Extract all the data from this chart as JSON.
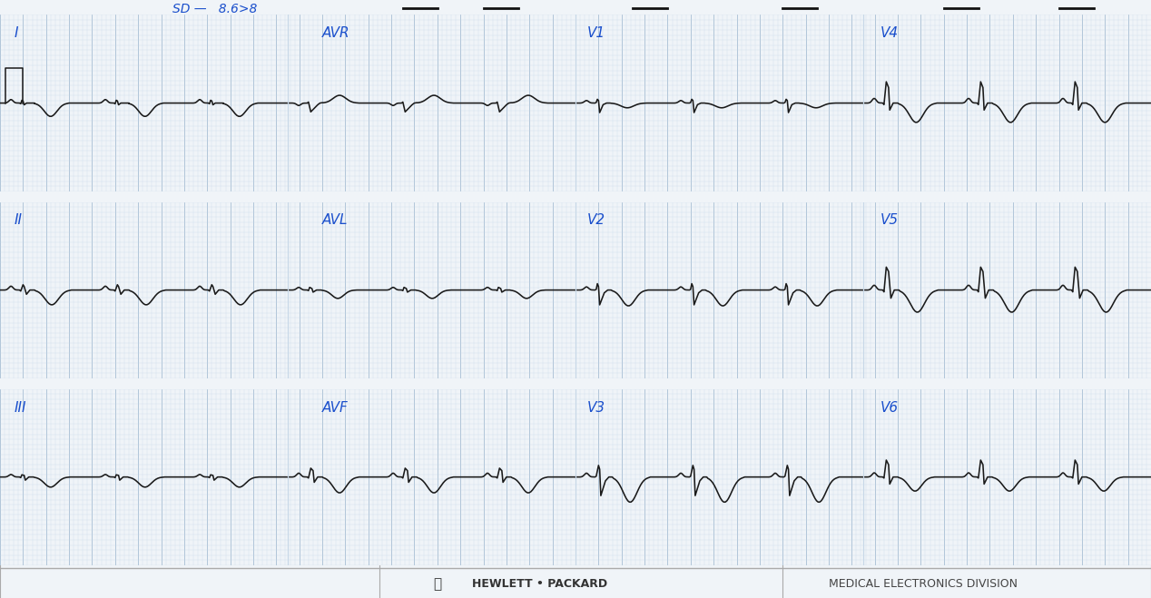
{
  "bg_color": "#f0f4f8",
  "grid_minor_color": "#c5d5e8",
  "grid_major_color": "#a0b8d0",
  "ecg_color": "#1a1a1a",
  "label_color": "#1a4fcc",
  "row_bg": "#f8fbff",
  "separator_color": "#c8d8e8",
  "footer_bg": "#cccccc",
  "title_text": "SD —   8.6>8",
  "footer_left": "HEWLETT • PACKARD",
  "footer_right": "MEDICAL ELECTRONICS DIVISION"
}
